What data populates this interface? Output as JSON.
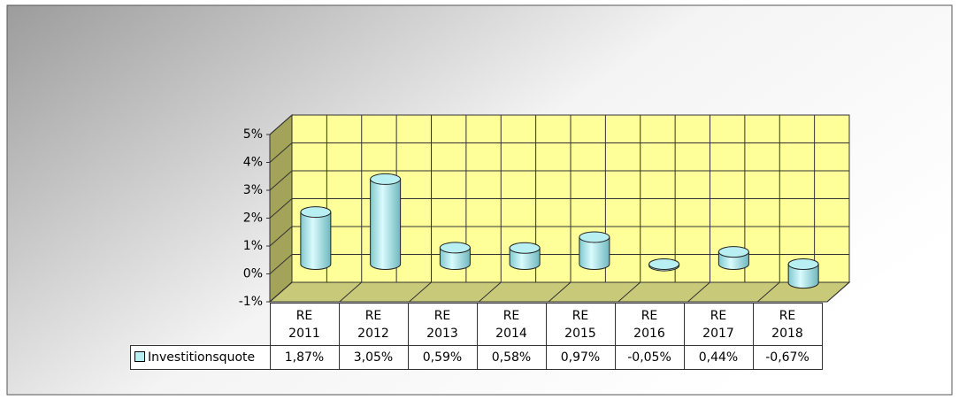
{
  "chart_data": {
    "type": "bar3d",
    "categories": [
      "RE 2011",
      "RE 2012",
      "RE 2013",
      "RE 2014",
      "RE 2015",
      "RE 2016",
      "RE 2017",
      "RE 2018"
    ],
    "series": [
      {
        "name": "Investitionsquote",
        "color": "#b8eff2",
        "values": [
          1.87,
          3.05,
          0.59,
          0.58,
          0.97,
          -0.05,
          0.44,
          -0.67
        ],
        "value_labels": [
          "1,87%",
          "3,05%",
          "0,59%",
          "0,58%",
          "0,97%",
          "-0,05%",
          "0,44%",
          "-0,67%"
        ]
      }
    ],
    "ylim": [
      -1,
      5
    ],
    "yticks": [
      {
        "value": -1,
        "label": "-1%"
      },
      {
        "value": 0,
        "label": "0%"
      },
      {
        "value": 1,
        "label": "1%"
      },
      {
        "value": 2,
        "label": "2%"
      },
      {
        "value": 3,
        "label": "3%"
      },
      {
        "value": 4,
        "label": "4%"
      },
      {
        "value": 5,
        "label": "5%"
      }
    ],
    "grid": true
  }
}
